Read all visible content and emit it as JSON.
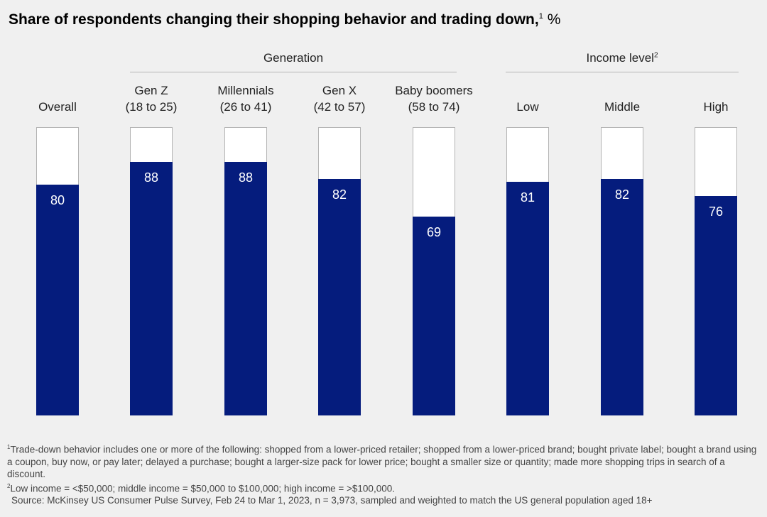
{
  "title": "Share of respondents changing their shopping behavior and trading down,",
  "title_footnote_mark": "1",
  "title_unit": "%",
  "groups": [
    {
      "label": "Generation",
      "footnote_mark": ""
    },
    {
      "label": "Income level",
      "footnote_mark": "2"
    }
  ],
  "colors": {
    "bar": "#051c7d",
    "track": "#ffffff",
    "background": "#f0f0f0"
  },
  "chart_data": {
    "type": "bar",
    "categories": [
      "Overall",
      "Gen Z (18 to 25)",
      "Millennials (26 to 41)",
      "Gen X (42 to 57)",
      "Baby boomers (58 to 74)",
      "Low",
      "Middle",
      "High"
    ],
    "category_lines": [
      [
        "Overall"
      ],
      [
        "Gen Z",
        "(18 to 25)"
      ],
      [
        "Millennials",
        "(26 to 41)"
      ],
      [
        "Gen X",
        "(42 to 57)"
      ],
      [
        "Baby boomers",
        "(58 to 74)"
      ],
      [
        "Low"
      ],
      [
        "Middle"
      ],
      [
        "High"
      ]
    ],
    "values": [
      80,
      88,
      88,
      82,
      69,
      81,
      82,
      76
    ],
    "ylim": [
      0,
      100
    ],
    "grid": false,
    "legend": "none"
  },
  "footnotes": {
    "fn1_mark": "1",
    "fn1_text": "Trade-down behavior includes one or more of the following: shopped from a lower-priced retailer; shopped from a lower-priced brand; bought private label; bought a brand using a coupon, buy now, or pay later; delayed a purchase; bought a larger-size pack for lower price; bought a smaller size or quantity; made more shopping trips in search of a discount.",
    "fn2_mark": "2",
    "fn2_text": "Low income = <$50,000; middle income = $50,000 to $100,000; high income = >$100,000.",
    "source": "Source: McKinsey US Consumer Pulse Survey, Feb 24 to Mar 1, 2023, n = 3,973, sampled and weighted to match the US general population aged 18+"
  }
}
